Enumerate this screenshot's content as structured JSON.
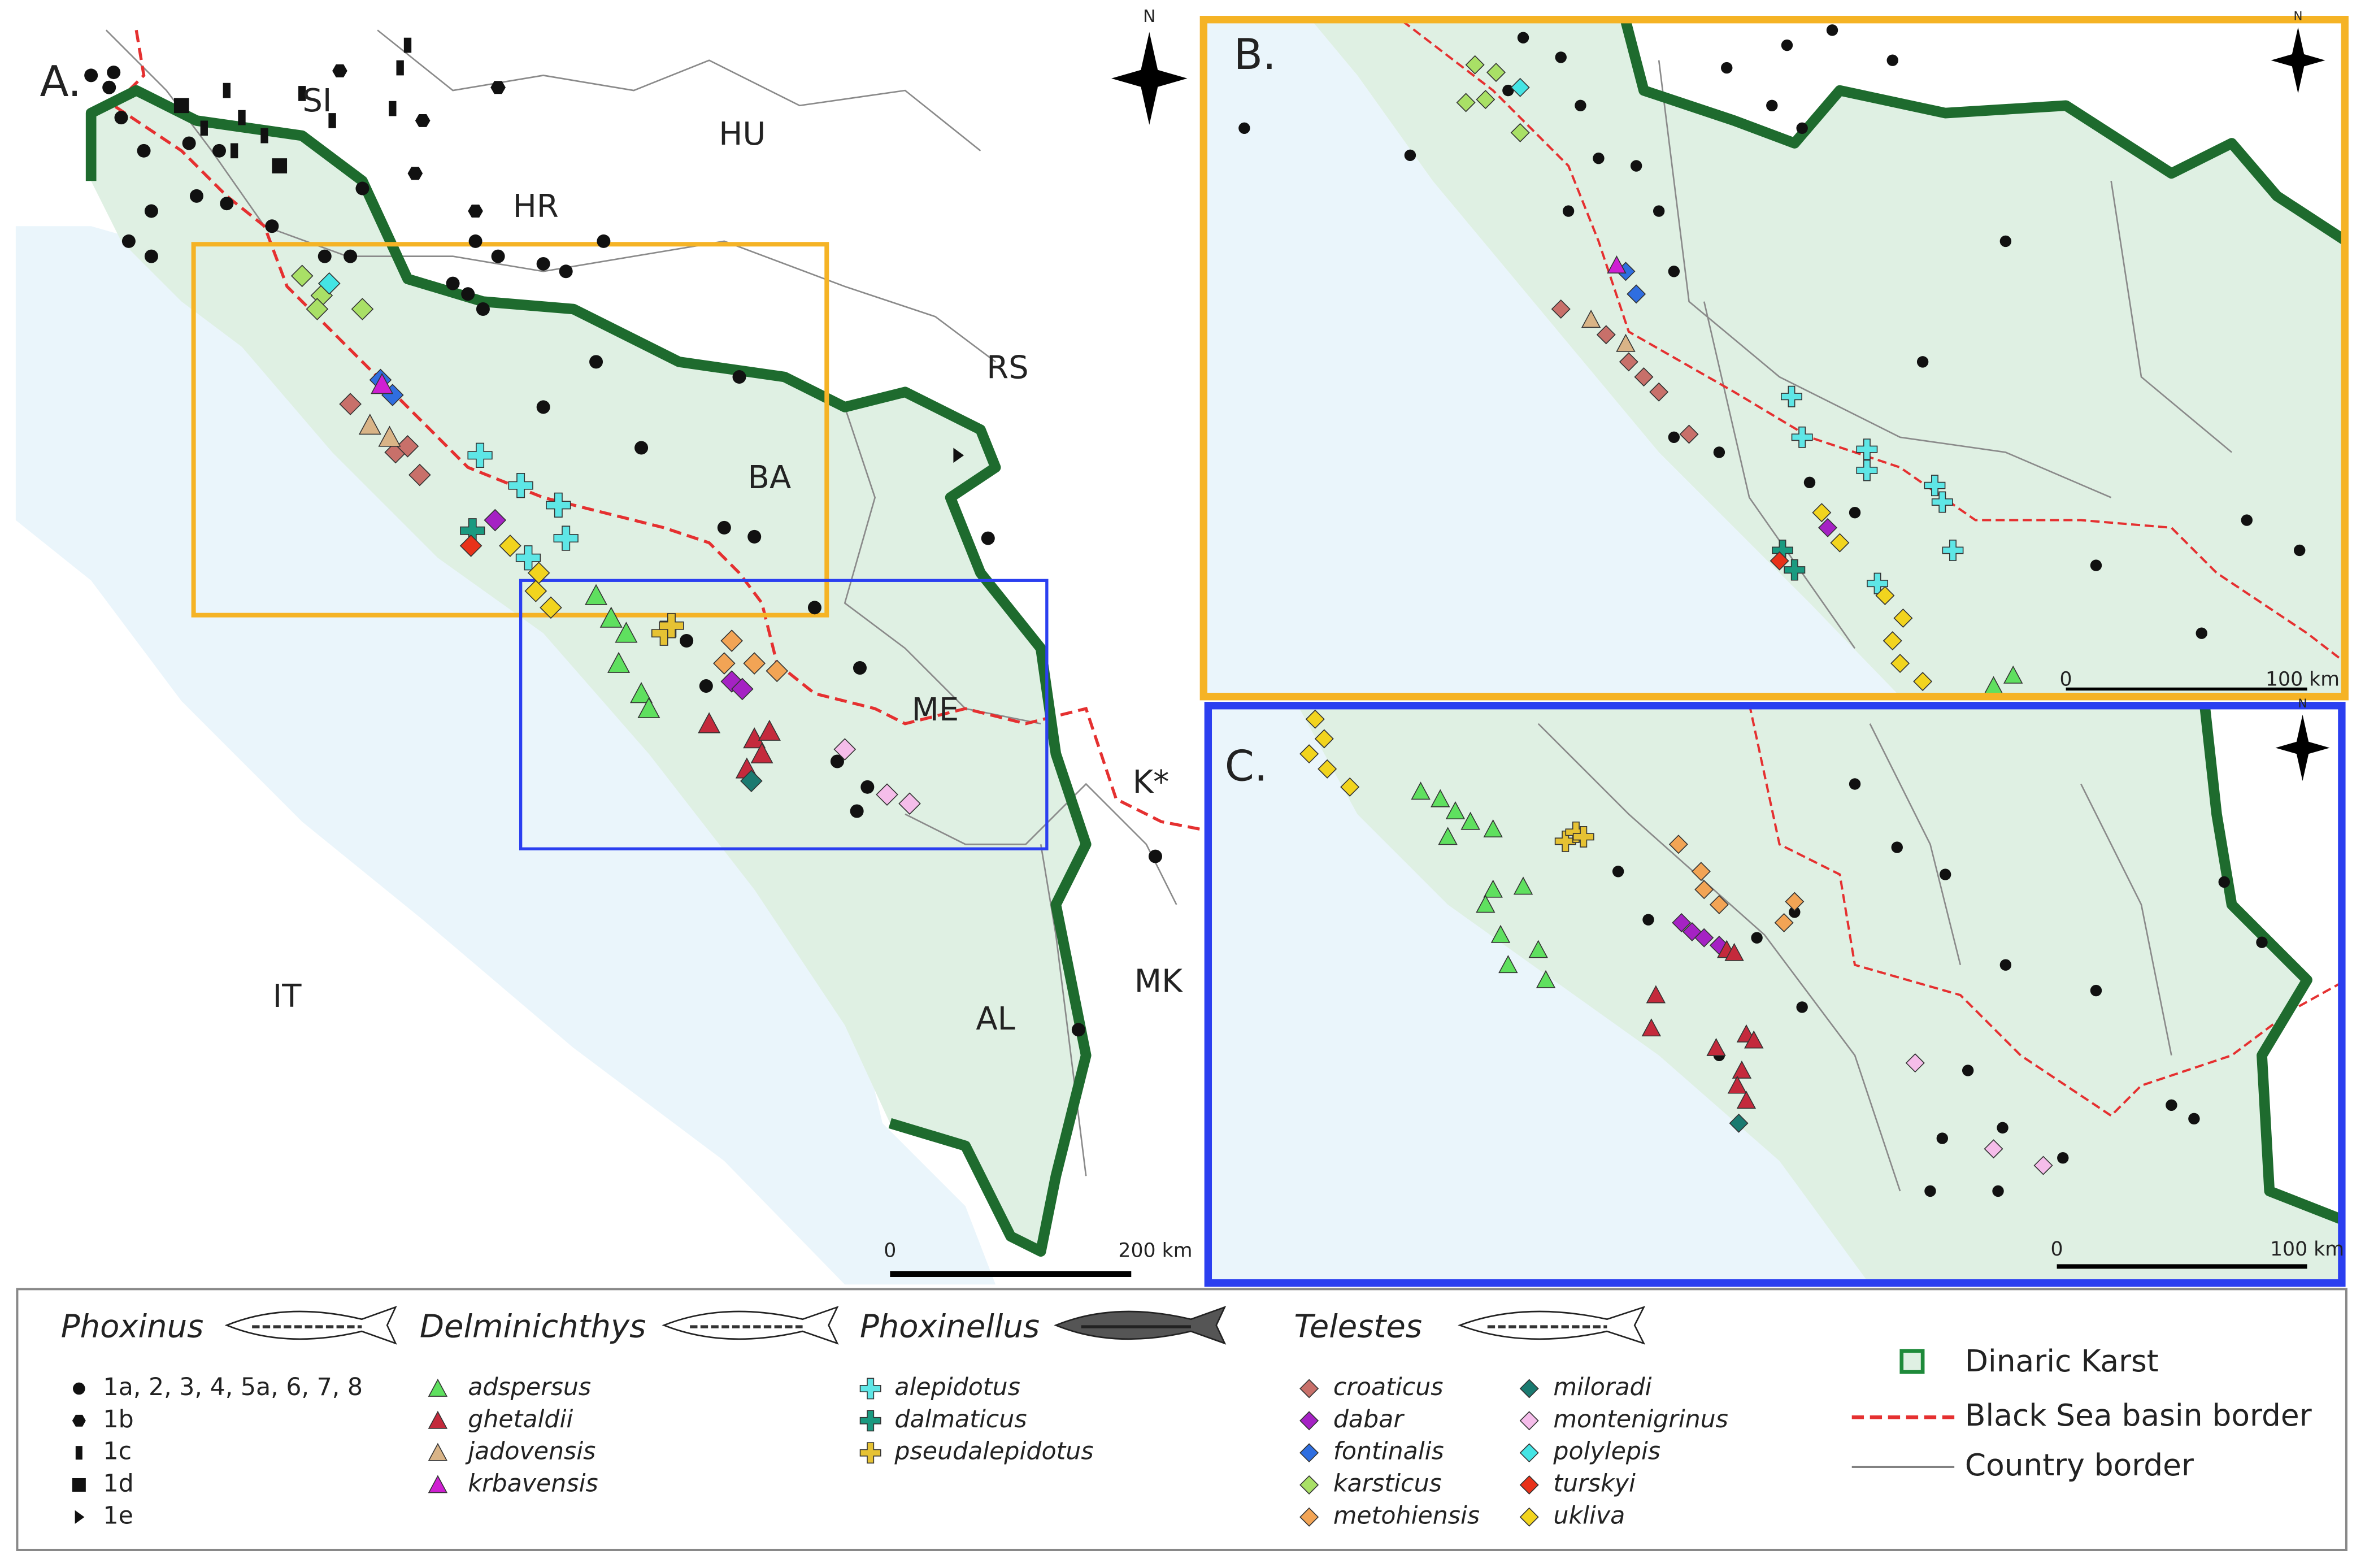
{
  "north": "N",
  "panels": {
    "a": {
      "label": "A.",
      "countries": [
        "SI",
        "HU",
        "HR",
        "RS",
        "BA",
        "ME",
        "K*",
        "MK",
        "IT",
        "AL"
      ],
      "scale": {
        "start": "0",
        "end": "200 km"
      }
    },
    "b": {
      "label": "B.",
      "scale": {
        "start": "0",
        "end": "100 km"
      }
    },
    "c": {
      "label": "C.",
      "scale": {
        "start": "0",
        "end": "100 km"
      }
    }
  },
  "legend": {
    "groups": [
      {
        "genus": "Phoxinus",
        "items": [
          "1a, 2, 3, 4, 5a, 6, 7, 8",
          "1b",
          "1c",
          "1d",
          "1e"
        ]
      },
      {
        "genus": "Delminichthys",
        "items": [
          "adspersus",
          "ghetaldii",
          "jadovensis",
          "krbavensis"
        ]
      },
      {
        "genus": "Phoxinellus",
        "items": [
          "alepidotus",
          "dalmaticus",
          "pseudalepidotus"
        ]
      },
      {
        "genus": "Telestes",
        "items": [
          "croaticus",
          "dabar",
          "fontinalis",
          "karsticus",
          "metohiensis",
          "miloradi",
          "montenigrinus",
          "polylepis",
          "turskyi",
          "ukliva"
        ]
      }
    ],
    "key": [
      "Dinaric Karst",
      "Black Sea basin border",
      "Country border"
    ]
  }
}
